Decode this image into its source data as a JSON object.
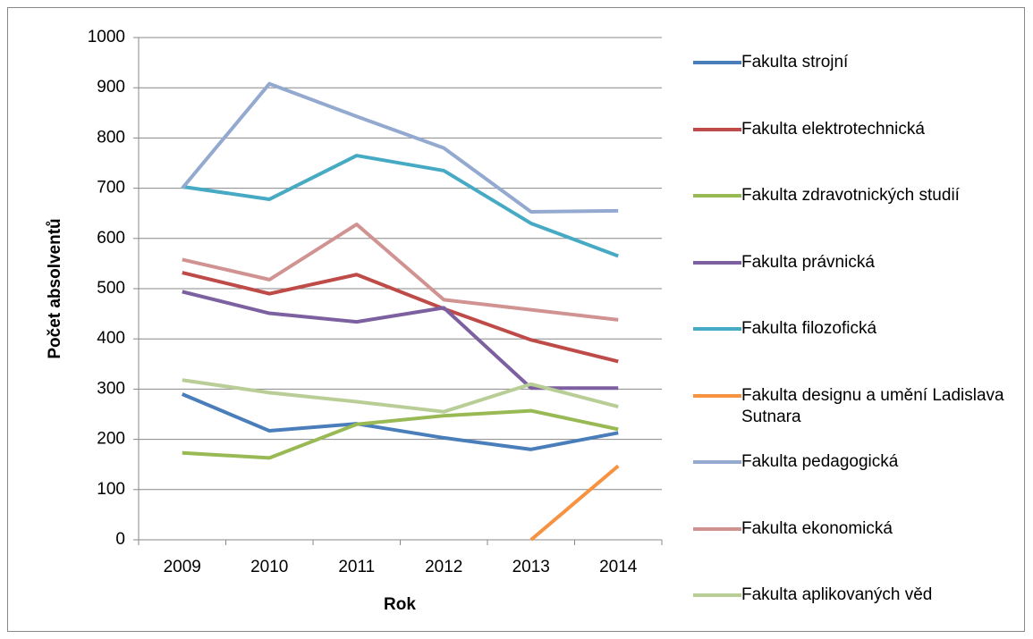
{
  "chart_data": {
    "type": "line",
    "categories": [
      "2009",
      "2010",
      "2011",
      "2012",
      "2013",
      "2014"
    ],
    "x_label": "Rok",
    "y_label": "Počet absolventů",
    "ylim": [
      0,
      1000
    ],
    "yticks": [
      0,
      100,
      200,
      300,
      400,
      500,
      600,
      700,
      800,
      900,
      1000
    ],
    "grid": true,
    "legend": "right",
    "series": [
      {
        "name": "Fakulta strojní",
        "color": "#4a7ebb",
        "values": [
          290,
          217,
          231,
          203,
          180,
          213
        ]
      },
      {
        "name": "Fakulta elektrotechnická",
        "color": "#be4b48",
        "values": [
          532,
          490,
          528,
          460,
          398,
          355
        ]
      },
      {
        "name": "Fakulta zdravotnických studií",
        "color": "#98b954",
        "values": [
          173,
          163,
          230,
          247,
          257,
          220
        ]
      },
      {
        "name": "Fakulta právnická",
        "color": "#7d60a0",
        "values": [
          494,
          451,
          434,
          462,
          302,
          302
        ]
      },
      {
        "name": "Fakulta filozofická",
        "color": "#46aac5",
        "values": [
          703,
          678,
          765,
          735,
          630,
          565
        ]
      },
      {
        "name": "Fakulta designu a umění Ladislava Sutnara",
        "color": "#f69240",
        "values": [
          null,
          null,
          null,
          null,
          0,
          147
        ]
      },
      {
        "name": "Fakulta pedagogická",
        "color": "#93a9cf",
        "values": [
          700,
          908,
          843,
          780,
          653,
          655
        ]
      },
      {
        "name": "Fakulta ekonomická",
        "color": "#d19392",
        "values": [
          558,
          518,
          628,
          478,
          458,
          438
        ]
      },
      {
        "name": "Fakulta aplikovaných věd",
        "color": "#b9cd96",
        "values": [
          318,
          293,
          275,
          255,
          310,
          265
        ]
      }
    ]
  }
}
